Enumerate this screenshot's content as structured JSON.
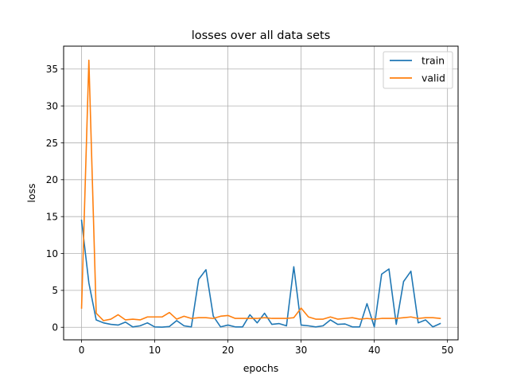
{
  "chart_data": {
    "type": "line",
    "title": "losses over all data sets",
    "xlabel": "epochs",
    "ylabel": "loss",
    "xlim": [
      -2.45,
      51.45
    ],
    "ylim": [
      -1.7,
      38.1
    ],
    "xticks": [
      0,
      10,
      20,
      30,
      40,
      50
    ],
    "yticks": [
      0,
      5,
      10,
      15,
      20,
      25,
      30,
      35
    ],
    "grid": true,
    "legend": "top-right",
    "x": [
      0,
      1,
      2,
      3,
      4,
      5,
      6,
      7,
      8,
      9,
      10,
      11,
      12,
      13,
      14,
      15,
      16,
      17,
      18,
      19,
      20,
      21,
      22,
      23,
      24,
      25,
      26,
      27,
      28,
      29,
      30,
      31,
      32,
      33,
      34,
      35,
      36,
      37,
      38,
      39,
      40,
      41,
      42,
      43,
      44,
      45,
      46,
      47,
      48,
      49
    ],
    "series": [
      {
        "name": "train",
        "color": "#1f77b4",
        "values": [
          14.5,
          6.0,
          1.0,
          0.6,
          0.4,
          0.3,
          0.7,
          0.05,
          0.2,
          0.6,
          0.05,
          0.02,
          0.1,
          0.9,
          0.2,
          0.05,
          6.5,
          7.8,
          1.5,
          0.05,
          0.3,
          0.05,
          0.05,
          1.7,
          0.6,
          1.9,
          0.4,
          0.5,
          0.2,
          8.2,
          0.3,
          0.2,
          0.05,
          0.2,
          1.0,
          0.4,
          0.45,
          0.05,
          0.05,
          3.2,
          0.05,
          7.2,
          7.9,
          0.4,
          6.2,
          7.6,
          0.6,
          1.0,
          0.05,
          0.5
        ]
      },
      {
        "name": "valid",
        "color": "#ff7f0e",
        "values": [
          2.6,
          36.2,
          1.9,
          0.9,
          1.1,
          1.7,
          1.0,
          1.1,
          1.0,
          1.4,
          1.4,
          1.4,
          2.0,
          1.1,
          1.5,
          1.2,
          1.3,
          1.3,
          1.2,
          1.5,
          1.6,
          1.2,
          1.2,
          1.2,
          1.2,
          1.3,
          1.2,
          1.2,
          1.2,
          1.3,
          2.6,
          1.4,
          1.1,
          1.1,
          1.4,
          1.1,
          1.2,
          1.3,
          1.1,
          1.2,
          1.1,
          1.2,
          1.2,
          1.2,
          1.3,
          1.4,
          1.2,
          1.3,
          1.3,
          1.2
        ]
      }
    ]
  }
}
